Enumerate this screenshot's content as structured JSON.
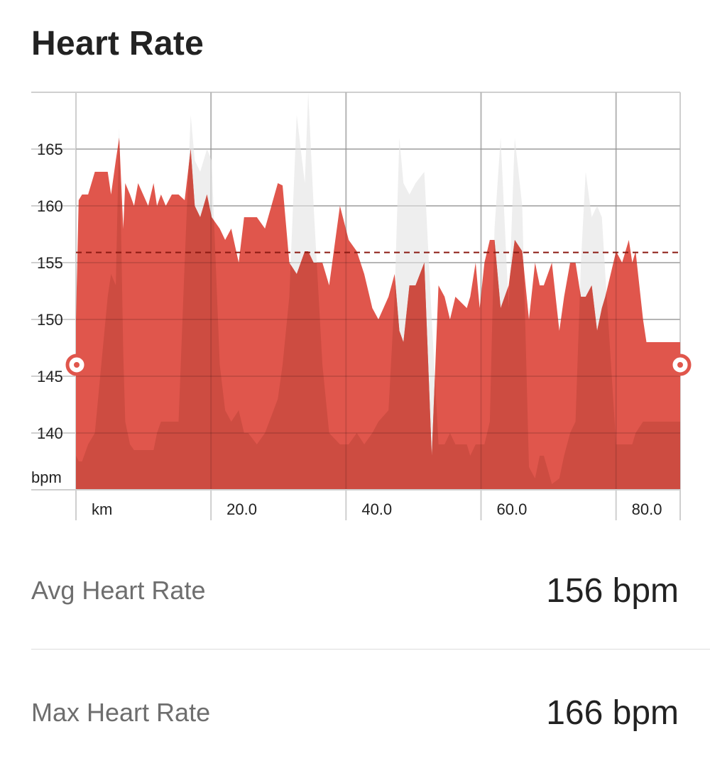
{
  "header": {
    "title": "Heart Rate"
  },
  "stats": {
    "avg_label": "Avg Heart Rate",
    "avg_value": "156 bpm",
    "max_label": "Max Heart Rate",
    "max_value": "166 bpm"
  },
  "colors": {
    "heart_rate_fill": "#e0564c",
    "elevation_shadow": "#c94a40",
    "elevation_light": "#eeeeee",
    "avg_line": "#8b1a12",
    "grid": "#cfcfcf"
  },
  "chart_data": {
    "type": "area",
    "x_unit_label": "km",
    "y_unit_label": "bpm",
    "x_tick_labels": [
      "20.0",
      "40.0",
      "60.0",
      "80.0"
    ],
    "x_ticks": [
      20,
      40,
      60,
      80
    ],
    "y_tick_labels": [
      "140",
      "145",
      "150",
      "155",
      "160",
      "165"
    ],
    "y_ticks": [
      140,
      145,
      150,
      155,
      160,
      165
    ],
    "xlim": [
      0,
      89.5
    ],
    "ylim": [
      135,
      170
    ],
    "grid": true,
    "average_line": 155.9,
    "range_start_marker": 146,
    "range_end_marker": 146,
    "series": [
      {
        "x": [
          0,
          0.4,
          0.9,
          1.8,
          2.8,
          4.7,
          5.2,
          5.9,
          6.4,
          7.0,
          7.3,
          8.0,
          8.6,
          9.2,
          10.7,
          11.5,
          12.0,
          12.6,
          13.3,
          14.2,
          15.2,
          16.1,
          17.0,
          17.6,
          18.4,
          19.4,
          20.1,
          21.3,
          22.1,
          23.0,
          24.1,
          24.9,
          25.5,
          26.8,
          28.0,
          29.9,
          30.6,
          31.6,
          32.7,
          33.9,
          34.4,
          35.2,
          36.5,
          37.5,
          39.1,
          40.4,
          41.6,
          42.7,
          43.9,
          44.8,
          46.3,
          47.2,
          47.9,
          48.5,
          49.4,
          50.3,
          51.6,
          52.7,
          53.7,
          54.6,
          55.4,
          56.2,
          57.9,
          58.4,
          59.2,
          59.8,
          60.5,
          61.3,
          62.0,
          62.9,
          64.1,
          65.0,
          66.1,
          67.1,
          68.0,
          68.7,
          69.3,
          70.5,
          71.6,
          72.3,
          73.2,
          74.0,
          74.8,
          75.5,
          76.4,
          77.2,
          77.9,
          78.4,
          80.0,
          80.9,
          81.9,
          82.4,
          82.9,
          84.0,
          84.5,
          85.3,
          86.0,
          86.6,
          87.0,
          87.7,
          88.4,
          89.2,
          89.5
        ],
        "values": [
          150,
          160.5,
          161,
          161,
          163,
          163,
          161,
          164,
          166,
          158,
          162,
          161,
          160,
          162,
          160,
          162,
          160,
          161,
          160,
          161,
          161,
          160.5,
          165,
          160,
          159,
          161,
          159,
          158,
          157,
          158,
          155,
          159,
          159,
          159,
          158,
          162,
          161.8,
          155,
          154,
          156,
          156,
          155,
          155,
          153,
          160,
          157,
          156,
          154,
          151,
          150,
          152,
          154,
          149,
          148,
          153,
          153,
          155,
          138,
          153,
          152,
          150,
          152,
          151,
          152,
          155,
          151,
          155,
          157,
          157,
          151,
          153,
          157,
          156,
          150,
          155,
          153,
          153,
          155,
          149,
          152,
          155,
          155,
          152,
          152,
          153,
          149,
          151,
          152,
          156,
          155,
          157,
          155,
          156,
          150,
          148,
          148,
          148,
          148,
          148,
          148,
          148,
          148,
          148
        ],
        "_note_elevation": "background shadow follows elevation profile; values read against bpm axis",
        "elevation": [
          138,
          137.5,
          137.5,
          139,
          140,
          152,
          154,
          153,
          167,
          147,
          141,
          139,
          138.5,
          138.5,
          138.5,
          138.5,
          140,
          141,
          141,
          141,
          141,
          155,
          168,
          164,
          163,
          165,
          164,
          146,
          142,
          141,
          142,
          140,
          140,
          139,
          140,
          143,
          146,
          152,
          168,
          162,
          170,
          160,
          146,
          140,
          139,
          139,
          140,
          139,
          140,
          141,
          142,
          152,
          166,
          162,
          161,
          162,
          163,
          150,
          139,
          139,
          140,
          139,
          139,
          138,
          139,
          139,
          139,
          141,
          158,
          166,
          151,
          166,
          160,
          137,
          136,
          138,
          138,
          135.5,
          136,
          138,
          140,
          141,
          155,
          163,
          159,
          160,
          159,
          154,
          139,
          139,
          139,
          139,
          140,
          141,
          141,
          141,
          141,
          141,
          141,
          141,
          141,
          141,
          141
        ]
      }
    ]
  }
}
